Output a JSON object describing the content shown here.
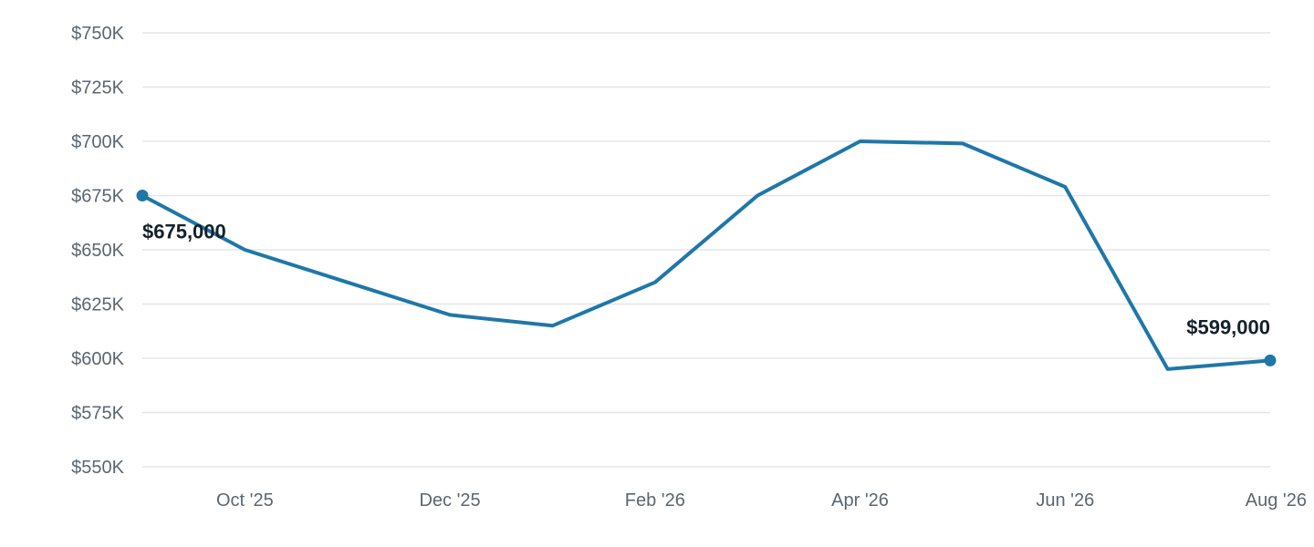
{
  "chart_data": {
    "type": "line",
    "x": [
      "Sep '25",
      "Oct '25",
      "Nov '25",
      "Dec '25",
      "Jan '26",
      "Feb '26",
      "Mar '26",
      "Apr '26",
      "May '26",
      "Jun '26",
      "Jul '26",
      "Aug '26"
    ],
    "x_tick_labels": [
      "Oct '25",
      "Dec '25",
      "Feb '26",
      "Apr '26",
      "Jun '26",
      "Aug '26"
    ],
    "series": [
      {
        "values": [
          675000,
          650000,
          635000,
          620000,
          615000,
          635000,
          675000,
          700000,
          699000,
          679000,
          595000,
          599000
        ],
        "color": "#1f77a8"
      }
    ],
    "ylim": [
      550000,
      750000
    ],
    "y_ticks": [
      550000,
      575000,
      600000,
      625000,
      650000,
      675000,
      700000,
      725000,
      750000
    ],
    "y_tick_labels": [
      "$550K",
      "$575K",
      "$600K",
      "$625K",
      "$650K",
      "$675K",
      "$700K",
      "$725K",
      "$750K"
    ],
    "annotations": [
      {
        "index": 0,
        "text": "$675,000"
      },
      {
        "index": 11,
        "text": "$599,000"
      }
    ],
    "grid": true,
    "legend": "none",
    "title": "",
    "xlabel": "",
    "ylabel": ""
  }
}
